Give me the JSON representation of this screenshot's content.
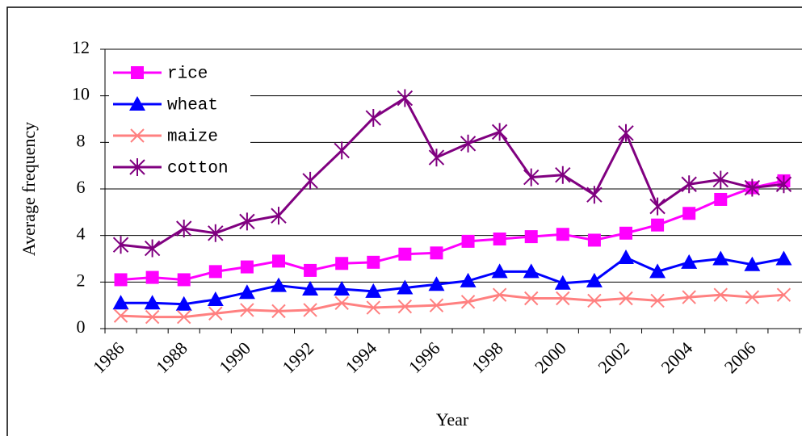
{
  "chart_data": {
    "type": "line",
    "x_label": "Year",
    "y_label": "Average frequency",
    "categories": [
      "1986",
      null,
      "1988",
      null,
      "1990",
      null,
      "1992",
      null,
      "1994",
      null,
      "1996",
      null,
      "1998",
      null,
      "2000",
      null,
      "2002",
      null,
      "2004",
      null,
      "2006",
      null
    ],
    "series": [
      {
        "name": "rice",
        "color": "#ff00ff",
        "marker": "square",
        "values": [
          2.1,
          2.2,
          2.1,
          2.45,
          2.65,
          2.9,
          2.5,
          2.8,
          2.85,
          3.2,
          3.25,
          3.75,
          3.85,
          3.95,
          4.05,
          3.8,
          4.1,
          4.45,
          4.95,
          5.55,
          6.05,
          6.35
        ]
      },
      {
        "name": "wheat",
        "color": "#0000ff",
        "marker": "triangle",
        "values": [
          1.1,
          1.1,
          1.05,
          1.25,
          1.55,
          1.85,
          1.7,
          1.7,
          1.6,
          1.75,
          1.9,
          2.05,
          2.45,
          2.45,
          1.95,
          2.05,
          3.05,
          2.45,
          2.85,
          3.0,
          2.75,
          3.0
        ]
      },
      {
        "name": "maize",
        "color": "#ff8080",
        "marker": "x",
        "values": [
          0.55,
          0.5,
          0.5,
          0.65,
          0.8,
          0.75,
          0.8,
          1.1,
          0.9,
          0.95,
          1.0,
          1.15,
          1.45,
          1.3,
          1.3,
          1.2,
          1.3,
          1.2,
          1.35,
          1.45,
          1.35,
          1.45
        ]
      },
      {
        "name": "cotton",
        "color": "#800080",
        "marker": "asterisk",
        "values": [
          3.6,
          3.45,
          4.3,
          4.1,
          4.6,
          4.85,
          6.35,
          7.65,
          9.05,
          9.9,
          7.35,
          7.95,
          8.45,
          6.5,
          6.6,
          5.75,
          8.4,
          5.25,
          6.2,
          6.4,
          6.05,
          6.2
        ]
      }
    ],
    "ylim": [
      0,
      12
    ],
    "yticks": [
      0,
      2,
      4,
      6,
      8,
      10,
      12
    ],
    "grid": true,
    "legend": "upper-left"
  }
}
